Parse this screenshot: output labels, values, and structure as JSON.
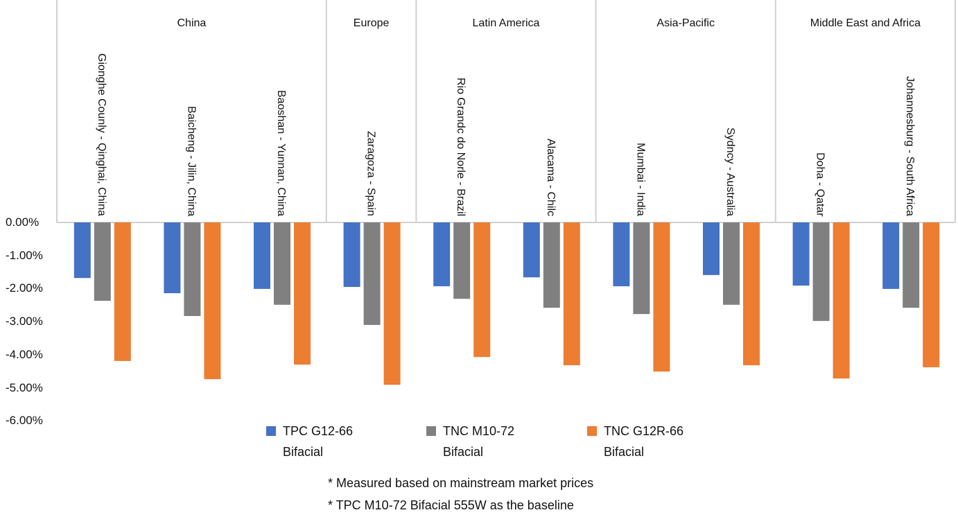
{
  "chart_data": {
    "type": "bar",
    "ylim": [
      -6,
      0
    ],
    "yticks": [
      "0.00%",
      "-1.00%",
      "-2.00%",
      "-3.00%",
      "-4.00%",
      "-5.00%",
      "-6.00%"
    ],
    "grid": false,
    "legend": "bottom",
    "regions": [
      {
        "name": "China",
        "count": 3
      },
      {
        "name": "Europe",
        "count": 1
      },
      {
        "name": "Latin America",
        "count": 2
      },
      {
        "name": "Asia-Pacific",
        "count": 2
      },
      {
        "name": "Middle East and Africa",
        "count": 2
      }
    ],
    "categories": [
      "Gionghe Counly - Qinghai, China",
      "Baicheng - Jilin, China",
      "Baoshan - Yunnan, China",
      "Zaragoza - Spain",
      "Rio Grandc do Norle - Brazil",
      "Alacama - Chilc",
      "Mumbai - India",
      "Sydncy - Australia",
      "Doha - Qatar",
      "Johannesburg - South Africa"
    ],
    "series": [
      {
        "name": "TPC G12-66 Bifacial",
        "color": "#4472c4",
        "values": [
          -1.68,
          -2.14,
          -2.01,
          -1.95,
          -1.93,
          -1.66,
          -1.93,
          -1.59,
          -1.91,
          -2.01
        ]
      },
      {
        "name": "TNC M10-72 Bifacial",
        "color": "#808080",
        "values": [
          -2.37,
          -2.83,
          -2.49,
          -3.1,
          -2.31,
          -2.58,
          -2.77,
          -2.49,
          -2.98,
          -2.58
        ]
      },
      {
        "name": "TNC G12R-66 Bifacial",
        "color": "#ed7d31",
        "values": [
          -4.19,
          -4.74,
          -4.3,
          -4.91,
          -4.07,
          -4.32,
          -4.51,
          -4.32,
          -4.72,
          -4.38
        ]
      }
    ],
    "legend_lines": [
      [
        "TPC G12-66",
        "Bifacial"
      ],
      [
        "TNC M10-72",
        "Bifacial"
      ],
      [
        "TNC G12R-66",
        "Bifacial"
      ]
    ]
  },
  "notes": [
    "* Measured based on mainstream market prices",
    "* TPC M10-72 Bifacial 555W as the baseline"
  ]
}
